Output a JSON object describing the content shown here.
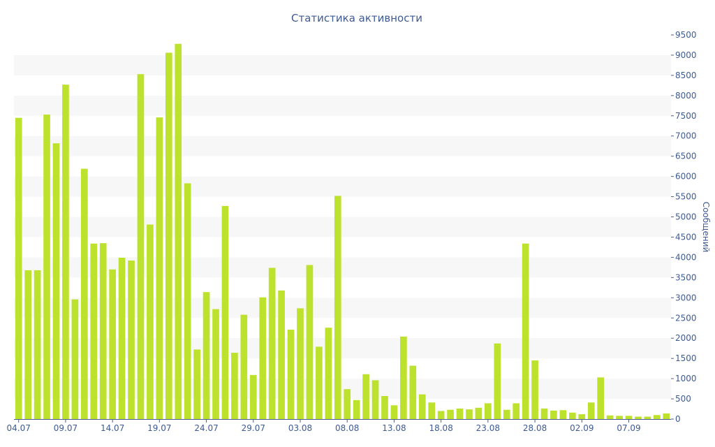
{
  "chart_data": {
    "type": "bar",
    "title": "Статистика активности",
    "ylabel": "Сообщений",
    "xlabel": "",
    "ylim": [
      0,
      9500
    ],
    "ytick_step": 500,
    "y_axis_side": "right",
    "grid": "alternating horizontal bands",
    "bar_color": "#bde22e",
    "text_color": "#3e5a92",
    "x_tick_labels": [
      "04.07",
      "09.07",
      "14.07",
      "19.07",
      "24.07",
      "29.07",
      "03.08",
      "08.08",
      "13.08",
      "18.08",
      "23.08",
      "28.08",
      "02.09",
      "07.09"
    ],
    "x_tick_every": 5,
    "values": [
      7450,
      3680,
      3680,
      7530,
      6820,
      8270,
      2960,
      6190,
      4340,
      4350,
      3700,
      3990,
      3920,
      8530,
      4810,
      7460,
      9060,
      9280,
      5830,
      1720,
      3140,
      2720,
      5270,
      1640,
      2580,
      1090,
      3010,
      3740,
      3180,
      2210,
      2740,
      3810,
      1790,
      2260,
      5520,
      740,
      470,
      1110,
      960,
      570,
      340,
      2040,
      1320,
      610,
      410,
      200,
      230,
      260,
      240,
      280,
      390,
      1870,
      230,
      390,
      4340,
      1450,
      260,
      210,
      220,
      160,
      120,
      410,
      1030,
      90,
      80,
      80,
      60,
      60,
      100,
      140
    ]
  }
}
